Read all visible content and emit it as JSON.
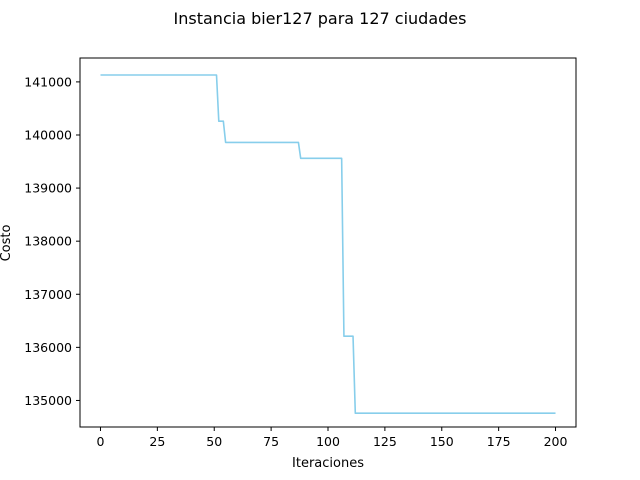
{
  "chart_data": {
    "type": "line",
    "title": "Instancia bier127 para 127 ciudades",
    "xlabel": "Iteraciones",
    "ylabel": "Costo",
    "xlim": [
      -9,
      209
    ],
    "ylim": [
      134500,
      141450
    ],
    "xticks": [
      0,
      25,
      50,
      75,
      100,
      125,
      150,
      175,
      200
    ],
    "yticks": [
      135000,
      136000,
      137000,
      138000,
      139000,
      140000,
      141000
    ],
    "grid": false,
    "color": "#87ceeb",
    "series": [
      {
        "x": [
          0,
          51,
          52,
          54,
          55,
          87,
          88,
          106,
          107,
          111,
          112,
          200
        ],
        "y": [
          141130,
          141130,
          140260,
          140260,
          139860,
          139860,
          139560,
          139560,
          136210,
          136210,
          134760,
          134760
        ]
      }
    ]
  }
}
